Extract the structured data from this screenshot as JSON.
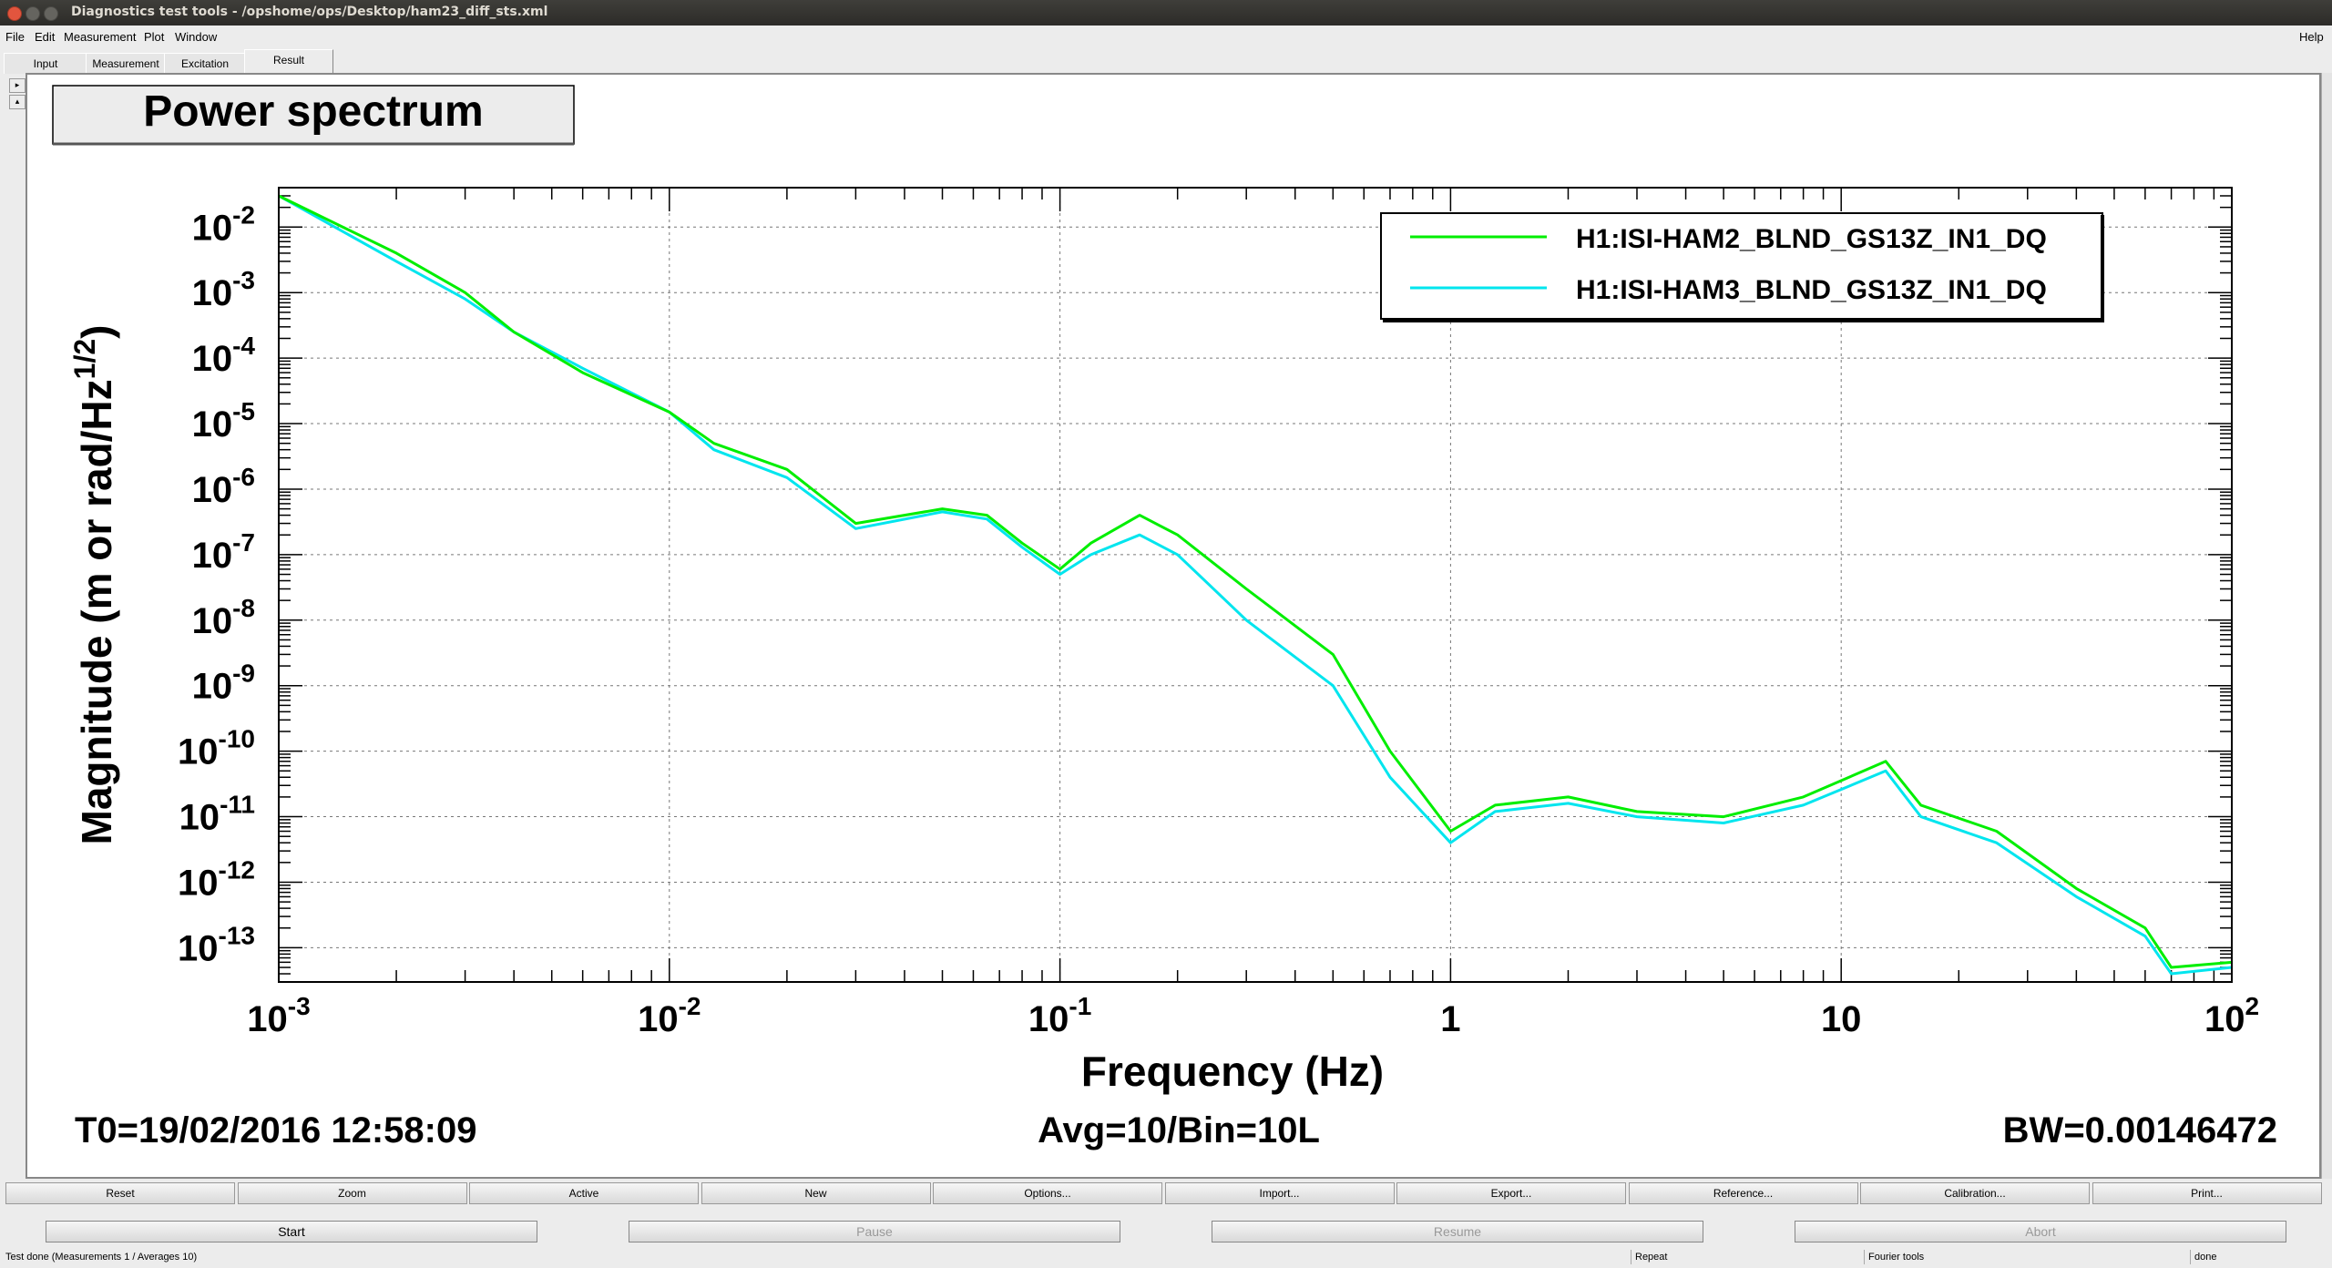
{
  "window": {
    "title": "Diagnostics test tools - /opshome/ops/Desktop/ham23_diff_sts.xml"
  },
  "menu": {
    "file": "File",
    "edit": "Edit",
    "measurement": "Measurement",
    "plot": "Plot",
    "window": "Window",
    "help": "Help"
  },
  "tabs": [
    "Input",
    "Measurement",
    "Excitation",
    "Result"
  ],
  "plot": {
    "title": "Power spectrum",
    "ylabel_main": "Magnitude (m or rad/Hz",
    "ylabel_exp": "1/2",
    "ylabel_close": ")",
    "xlabel": "Frequency (Hz)",
    "footer_left": "T0=19/02/2016 12:58:09",
    "footer_center": "Avg=10/Bin=10L",
    "footer_right": "BW=0.00146472"
  },
  "chart_data": {
    "type": "line",
    "x_scale": "log",
    "y_scale": "log",
    "xlim": [
      0.001,
      100
    ],
    "ylim": [
      3e-14,
      0.04
    ],
    "grid": true,
    "legend_position": "top-right",
    "x_ticks": [
      {
        "base": "10",
        "exp": "-3",
        "value": 0.001
      },
      {
        "base": "10",
        "exp": "-2",
        "value": 0.01
      },
      {
        "base": "10",
        "exp": "-1",
        "value": 0.1
      },
      {
        "base": "1",
        "exp": "",
        "value": 1
      },
      {
        "base": "10",
        "exp": "",
        "value": 10
      },
      {
        "base": "10",
        "exp": "2",
        "value": 100
      }
    ],
    "y_ticks": [
      {
        "base": "10",
        "exp": "-2",
        "value": 0.01
      },
      {
        "base": "10",
        "exp": "-3",
        "value": 0.001
      },
      {
        "base": "10",
        "exp": "-4",
        "value": 0.0001
      },
      {
        "base": "10",
        "exp": "-5",
        "value": 1e-05
      },
      {
        "base": "10",
        "exp": "-6",
        "value": 1e-06
      },
      {
        "base": "10",
        "exp": "-7",
        "value": 1e-07
      },
      {
        "base": "10",
        "exp": "-8",
        "value": 1e-08
      },
      {
        "base": "10",
        "exp": "-9",
        "value": 1e-09
      },
      {
        "base": "10",
        "exp": "-10",
        "value": 1e-10
      },
      {
        "base": "10",
        "exp": "-11",
        "value": 1e-11
      },
      {
        "base": "10",
        "exp": "-12",
        "value": 1e-12
      },
      {
        "base": "10",
        "exp": "-13",
        "value": 1e-13
      }
    ],
    "series": [
      {
        "name": "H1:ISI-HAM2_BLND_GS13Z_IN1_DQ",
        "color": "#00ee00",
        "x": [
          0.001,
          0.002,
          0.003,
          0.004,
          0.006,
          0.01,
          0.013,
          0.02,
          0.03,
          0.05,
          0.065,
          0.08,
          0.1,
          0.12,
          0.16,
          0.2,
          0.3,
          0.5,
          0.7,
          1.0,
          1.3,
          2.0,
          3.0,
          5.0,
          8.0,
          13.0,
          16.0,
          25.0,
          40.0,
          60.0,
          70.0,
          100.0
        ],
        "y": [
          0.03,
          0.004,
          0.001,
          0.00025,
          6e-05,
          1.5e-05,
          5e-06,
          2e-06,
          3e-07,
          5e-07,
          4e-07,
          1.5e-07,
          6e-08,
          1.5e-07,
          4e-07,
          2e-07,
          3e-08,
          3e-09,
          1e-10,
          6e-12,
          1.5e-11,
          2e-11,
          1.2e-11,
          1e-11,
          2e-11,
          7e-11,
          1.5e-11,
          6e-12,
          8e-13,
          2e-13,
          5e-14,
          6e-14
        ]
      },
      {
        "name": "H1:ISI-HAM3_BLND_GS13Z_IN1_DQ",
        "color": "#00e5ee",
        "x": [
          0.001,
          0.002,
          0.003,
          0.004,
          0.006,
          0.01,
          0.013,
          0.02,
          0.03,
          0.05,
          0.065,
          0.08,
          0.1,
          0.12,
          0.16,
          0.2,
          0.3,
          0.5,
          0.7,
          1.0,
          1.3,
          2.0,
          3.0,
          5.0,
          8.0,
          13.0,
          16.0,
          25.0,
          40.0,
          60.0,
          70.0,
          100.0
        ],
        "y": [
          0.03,
          0.003,
          0.0008,
          0.00025,
          7e-05,
          1.5e-05,
          4e-06,
          1.5e-06,
          2.5e-07,
          4.5e-07,
          3.5e-07,
          1.3e-07,
          5e-08,
          1e-07,
          2e-07,
          1e-07,
          1e-08,
          1e-09,
          4e-11,
          4e-12,
          1.2e-11,
          1.6e-11,
          1e-11,
          8e-12,
          1.5e-11,
          5e-11,
          1e-11,
          4e-12,
          6e-13,
          1.5e-13,
          4e-14,
          5e-14
        ]
      }
    ]
  },
  "buttons_row1": [
    "Reset",
    "Zoom",
    "Active",
    "New",
    "Options...",
    "Import...",
    "Export...",
    "Reference...",
    "Calibration...",
    "Print..."
  ],
  "buttons_row2": [
    "Start",
    "Pause",
    "Resume",
    "Abort"
  ],
  "status": {
    "main": "Test done (Measurements 1 / Averages 10)",
    "repeat": "Repeat",
    "tools": "Fourier tools",
    "state": "done"
  },
  "side": {
    "up": "▸",
    "down": "▴"
  }
}
